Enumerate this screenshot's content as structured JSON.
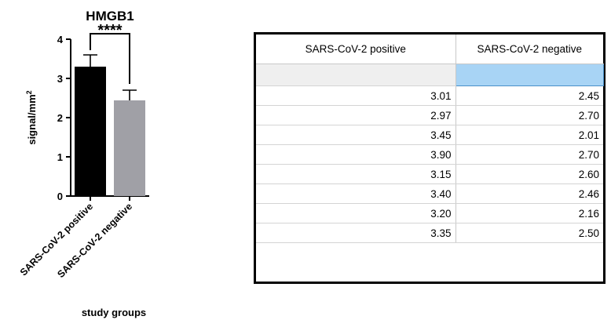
{
  "chart_data": {
    "type": "bar",
    "title": "HMGB1",
    "xlabel": "study groups",
    "ylabel": "signal/mm",
    "ylabel_superscript": "2",
    "ylim": [
      0,
      4
    ],
    "yticks": [
      0,
      1,
      2,
      3,
      4
    ],
    "categories": [
      "SARS-CoV-2 positive",
      "SARS-CoV-2 negative"
    ],
    "values": [
      3.3,
      2.44
    ],
    "error_upper": [
      0.3,
      0.26
    ],
    "colors": [
      "#000000",
      "#a0a0a6"
    ],
    "significance": "****",
    "grid": false
  },
  "table": {
    "headers": [
      "SARS-CoV-2 positive",
      "SARS-CoV-2 negative"
    ],
    "rows": [
      [
        "3.01",
        "2.45"
      ],
      [
        "2.97",
        "2.70"
      ],
      [
        "3.45",
        "2.01"
      ],
      [
        "3.90",
        "2.70"
      ],
      [
        "3.15",
        "2.60"
      ],
      [
        "3.40",
        "2.46"
      ],
      [
        "3.20",
        "2.16"
      ],
      [
        "3.35",
        "2.50"
      ]
    ]
  }
}
